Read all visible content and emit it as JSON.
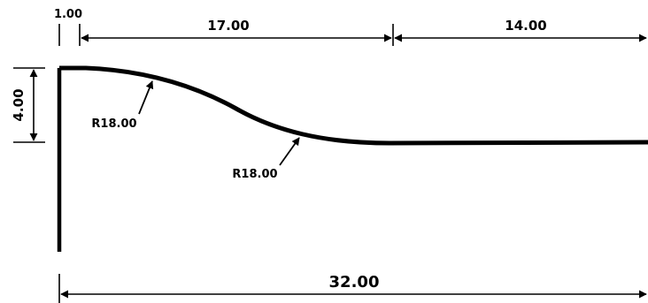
{
  "dimensions": {
    "top_offset": "1.00",
    "top_middle": "17.00",
    "top_right": "14.00",
    "left_height": "4.00",
    "bottom_total": "32.00"
  },
  "radius_labels": {
    "upper": "R18.00",
    "lower": "R18.00"
  },
  "colors": {
    "stroke": "#000000",
    "background": "#ffffff"
  }
}
